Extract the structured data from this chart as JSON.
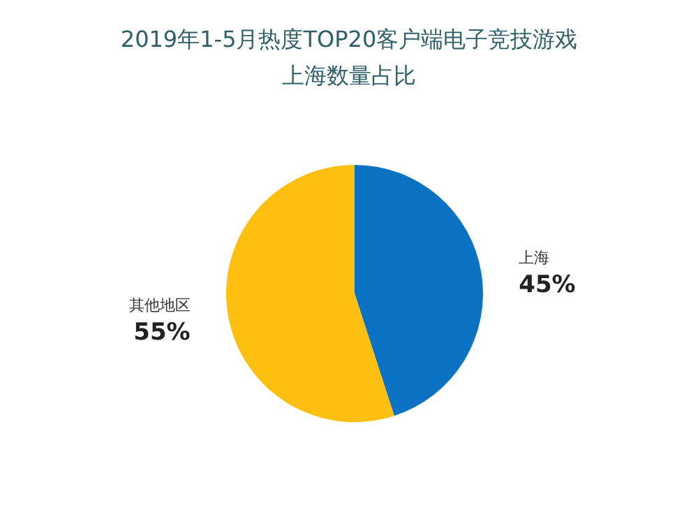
{
  "chart_data": {
    "type": "pie",
    "title": "2019年1-5月热度TOP20客户端电子竞技游戏",
    "subtitle": "上海数量占比",
    "categories": [
      "上海",
      "其他地区"
    ],
    "values": [
      45,
      55
    ],
    "value_labels": [
      "45%",
      "55%"
    ],
    "colors": [
      "#0b72c4",
      "#fdc010"
    ],
    "legend": false
  }
}
